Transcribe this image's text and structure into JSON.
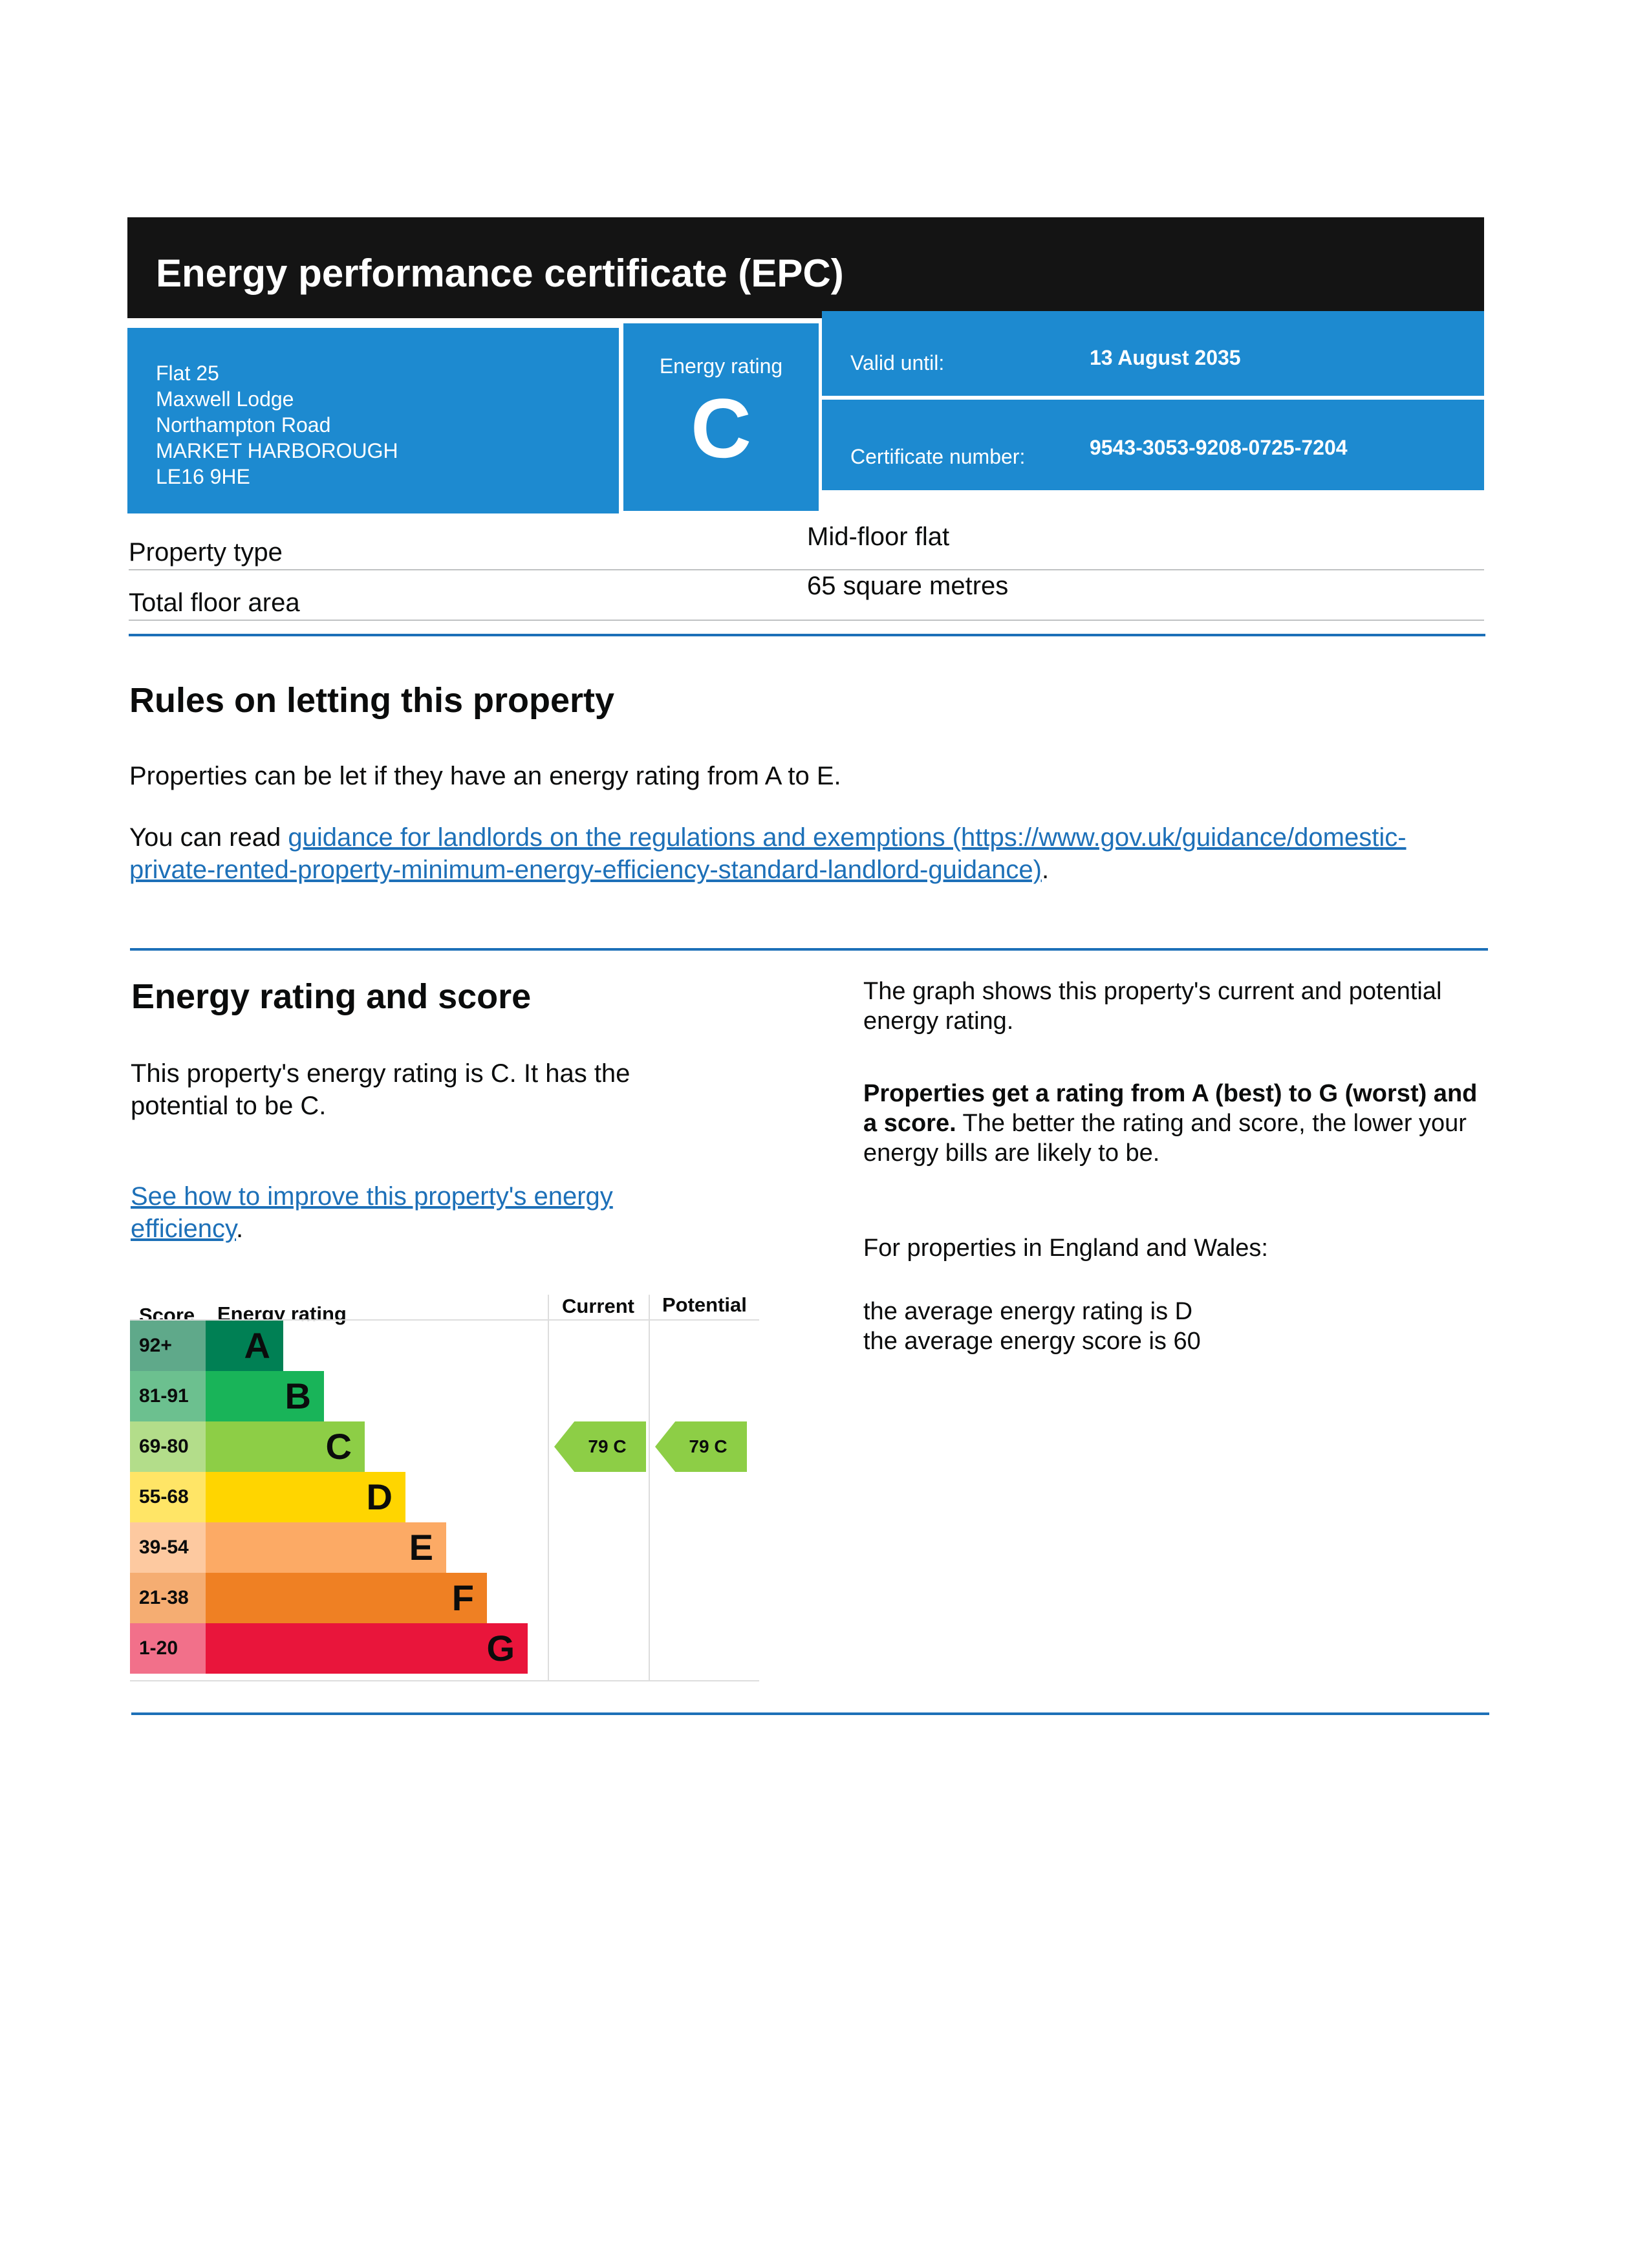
{
  "header": {
    "title": "Energy performance certificate (EPC)"
  },
  "address": [
    "Flat 25",
    "Maxwell Lodge",
    "Northampton Road",
    "MARKET HARBOROUGH",
    "LE16 9HE"
  ],
  "rating_box": {
    "label": "Energy rating",
    "value": "C"
  },
  "valid": {
    "label": "Valid until:",
    "value": "13 August 2035"
  },
  "certificate": {
    "label": "Certificate number:",
    "value": "9543-3053-9208-0725-7204"
  },
  "property": {
    "type_label": "Property type",
    "type_value": "Mid-floor flat",
    "area_label": "Total floor area",
    "area_value": "65 square metres"
  },
  "letting": {
    "heading": "Rules on letting this property",
    "para": "Properties can be let if they have an energy rating from A to E.",
    "read_prefix": "You can read ",
    "link": "guidance for landlords on the regulations and exemptions (https://www.gov.uk/guidance/domestic-private-rented-property-minimum-energy-efficiency-standard-landlord-guidance)",
    "read_suffix": "."
  },
  "score_section": {
    "heading": "Energy rating and score",
    "para": "This property's energy rating is C. It has the potential to be C.",
    "link": "See how to improve this property's energy efficiency",
    "link_suffix": ".",
    "graph_text": "The graph shows this property's current and potential energy rating.",
    "bold_text": "Properties get a rating from A (best) to G (worst) and a score.",
    "rest_text": " The better the rating and score, the lower your energy bills are likely to be.",
    "england_wales": "For properties in England and Wales:",
    "avg_rating": "the average energy rating is D",
    "avg_score": "the average energy score is 60"
  },
  "chart_data": {
    "type": "table",
    "headers": {
      "score": "Score",
      "rating": "Energy rating",
      "current": "Current",
      "potential": "Potential"
    },
    "bands": [
      {
        "letter": "A",
        "range": "92+",
        "color": "#008054",
        "score_color": "#5fa98a"
      },
      {
        "letter": "B",
        "range": "81-91",
        "color": "#19b459",
        "score_color": "#6cc08f"
      },
      {
        "letter": "C",
        "range": "69-80",
        "color": "#8dce46",
        "score_color": "#b3dd8a"
      },
      {
        "letter": "D",
        "range": "55-68",
        "color": "#ffd500",
        "score_color": "#ffe566"
      },
      {
        "letter": "E",
        "range": "39-54",
        "color": "#fcaa65",
        "score_color": "#fdc9a0"
      },
      {
        "letter": "F",
        "range": "21-38",
        "color": "#ef8023",
        "score_color": "#f5ad72"
      },
      {
        "letter": "G",
        "range": "1-20",
        "color": "#e9153b",
        "score_color": "#f2708a"
      }
    ],
    "current": {
      "score": 79,
      "letter": "C",
      "label": "79 C"
    },
    "potential": {
      "score": 79,
      "letter": "C",
      "label": "79 C"
    }
  }
}
